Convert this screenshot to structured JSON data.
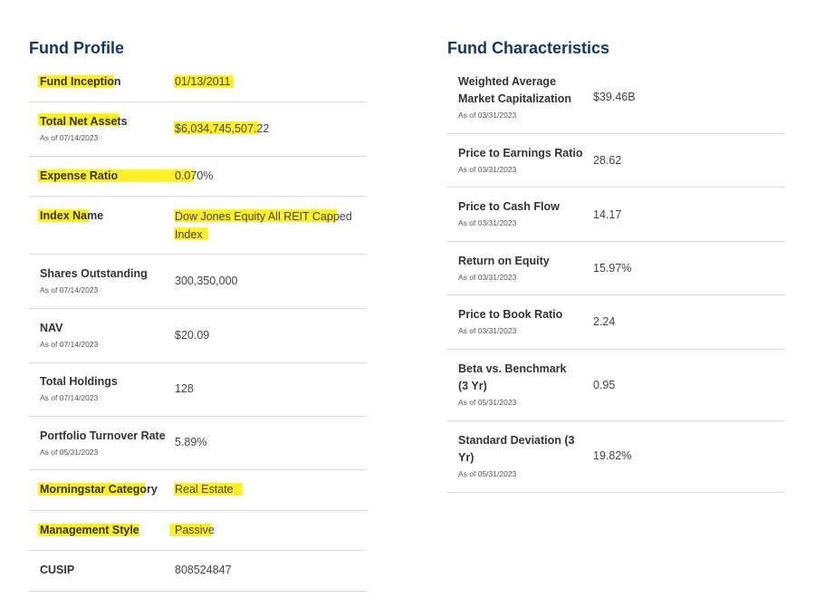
{
  "profile": {
    "title": "Fund Profile",
    "rows": [
      {
        "label": "Fund Inception",
        "asof": "",
        "value": "01/13/2011"
      },
      {
        "label": "Total Net Assets",
        "asof": "As of 07/14/2023",
        "value": "$6,034,745,507.22"
      },
      {
        "label": "Expense Ratio",
        "asof": "",
        "value": "0.070%"
      },
      {
        "label": "Index Name",
        "asof": "",
        "value": "Dow Jones Equity All REIT Capped Index"
      },
      {
        "label": "Shares Outstanding",
        "asof": "As of 07/14/2023",
        "value": "300,350,000"
      },
      {
        "label": "NAV",
        "asof": "As of 07/14/2023",
        "value": "$20.09"
      },
      {
        "label": "Total Holdings",
        "asof": "As of 07/14/2023",
        "value": "128"
      },
      {
        "label": "Portfolio Turnover Rate",
        "asof": "As of 05/31/2023",
        "value": "5.89%"
      },
      {
        "label": "Morningstar Category",
        "asof": "",
        "value": "Real Estate"
      },
      {
        "label": "Management Style",
        "asof": "",
        "value": "Passive"
      },
      {
        "label": "CUSIP",
        "asof": "",
        "value": "808524847"
      }
    ]
  },
  "characteristics": {
    "title": "Fund Characteristics",
    "rows": [
      {
        "label": "Weighted Average Market Capitalization",
        "asof": "As of 03/31/2023",
        "value": "$39.46B"
      },
      {
        "label": "Price to Earnings Ratio",
        "asof": "As of 03/31/2023",
        "value": "28.62"
      },
      {
        "label": "Price to Cash Flow",
        "asof": "As of 03/31/2023",
        "value": "14.17"
      },
      {
        "label": "Return on Equity",
        "asof": "As of 03/31/2023",
        "value": "15.97%"
      },
      {
        "label": "Price to Book Ratio",
        "asof": "As of 03/31/2023",
        "value": "2.24"
      },
      {
        "label": "Beta vs. Benchmark (3 Yr)",
        "asof": "As of 05/31/2023",
        "value": "0.95"
      },
      {
        "label": "Standard Deviation (3 Yr)",
        "asof": "As of 05/31/2023",
        "value": "19.82%"
      }
    ]
  },
  "highlight_color": "#ffed00"
}
